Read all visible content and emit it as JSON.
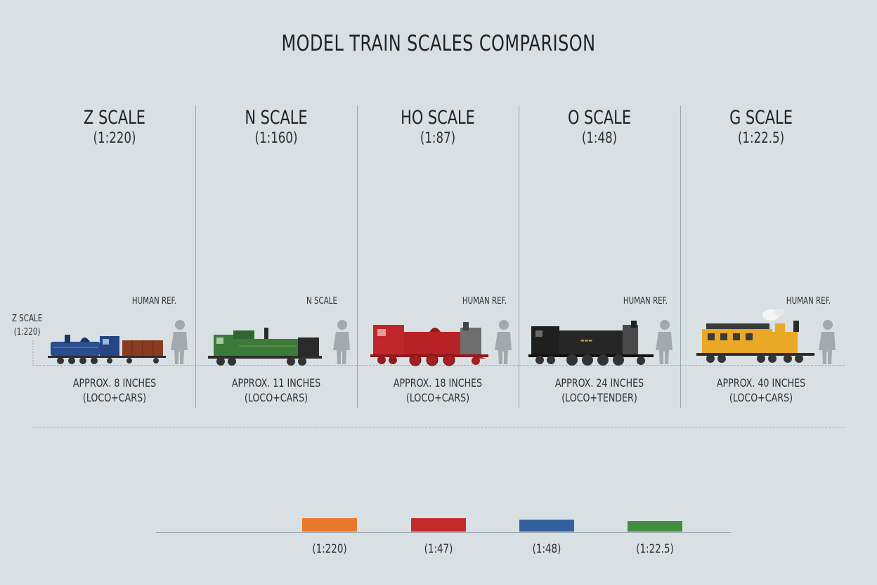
{
  "title": "MODEL TRAIN SCALES COMPARISON",
  "scales": [
    {
      "name": "Z SCALE",
      "ratio": "(1:220)",
      "ref_label": "HUMAN REF.",
      "length_line1": "APPROX. 8 INCHES",
      "length_line2": "(LOCO+CARS)"
    },
    {
      "name": "N SCALE",
      "ratio": "(1:160)",
      "ref_label": "N SCALE",
      "length_line1": "APPROX. 11 INCHES",
      "length_line2": "(LOCO+CARS)"
    },
    {
      "name": "HO SCALE",
      "ratio": "(1:87)",
      "ref_label": "HUMAN REF.",
      "length_line1": "APPROX. 18 INCHES",
      "length_line2": "(LOCO+CARS)"
    },
    {
      "name": "O SCALE",
      "ratio": "(1:48)",
      "ref_label": "HUMAN REF.",
      "length_line1": "APPROX. 24 INCHES",
      "length_line2": "(LOCO+TENDER)"
    },
    {
      "name": "G SCALE",
      "ratio": "(1:22.5)",
      "ref_label": "HUMAN REF.",
      "length_line1": "APPROX. 40 INCHES",
      "length_line2": "(LOCO+CARS)"
    }
  ],
  "z_side_label": {
    "line1": "Z SCALE",
    "line2": "(1:220)"
  },
  "legend": [
    {
      "label": "(1:220)",
      "color": "#e8792a"
    },
    {
      "label": "(1:47)",
      "color": "#c42a2c"
    },
    {
      "label": "(1:48)",
      "color": "#3460a0"
    },
    {
      "label": "(1:22.5)",
      "color": "#3f8f3f"
    }
  ],
  "colors": {
    "z_loco": "#2a4d8f",
    "z_car": "#8a3b22",
    "n_loco": "#3c7a3a",
    "ho_loco": "#c0262a",
    "o_loco": "#1f1f1f",
    "g_loco": "#e9a826",
    "human": "#a3a9ad"
  }
}
